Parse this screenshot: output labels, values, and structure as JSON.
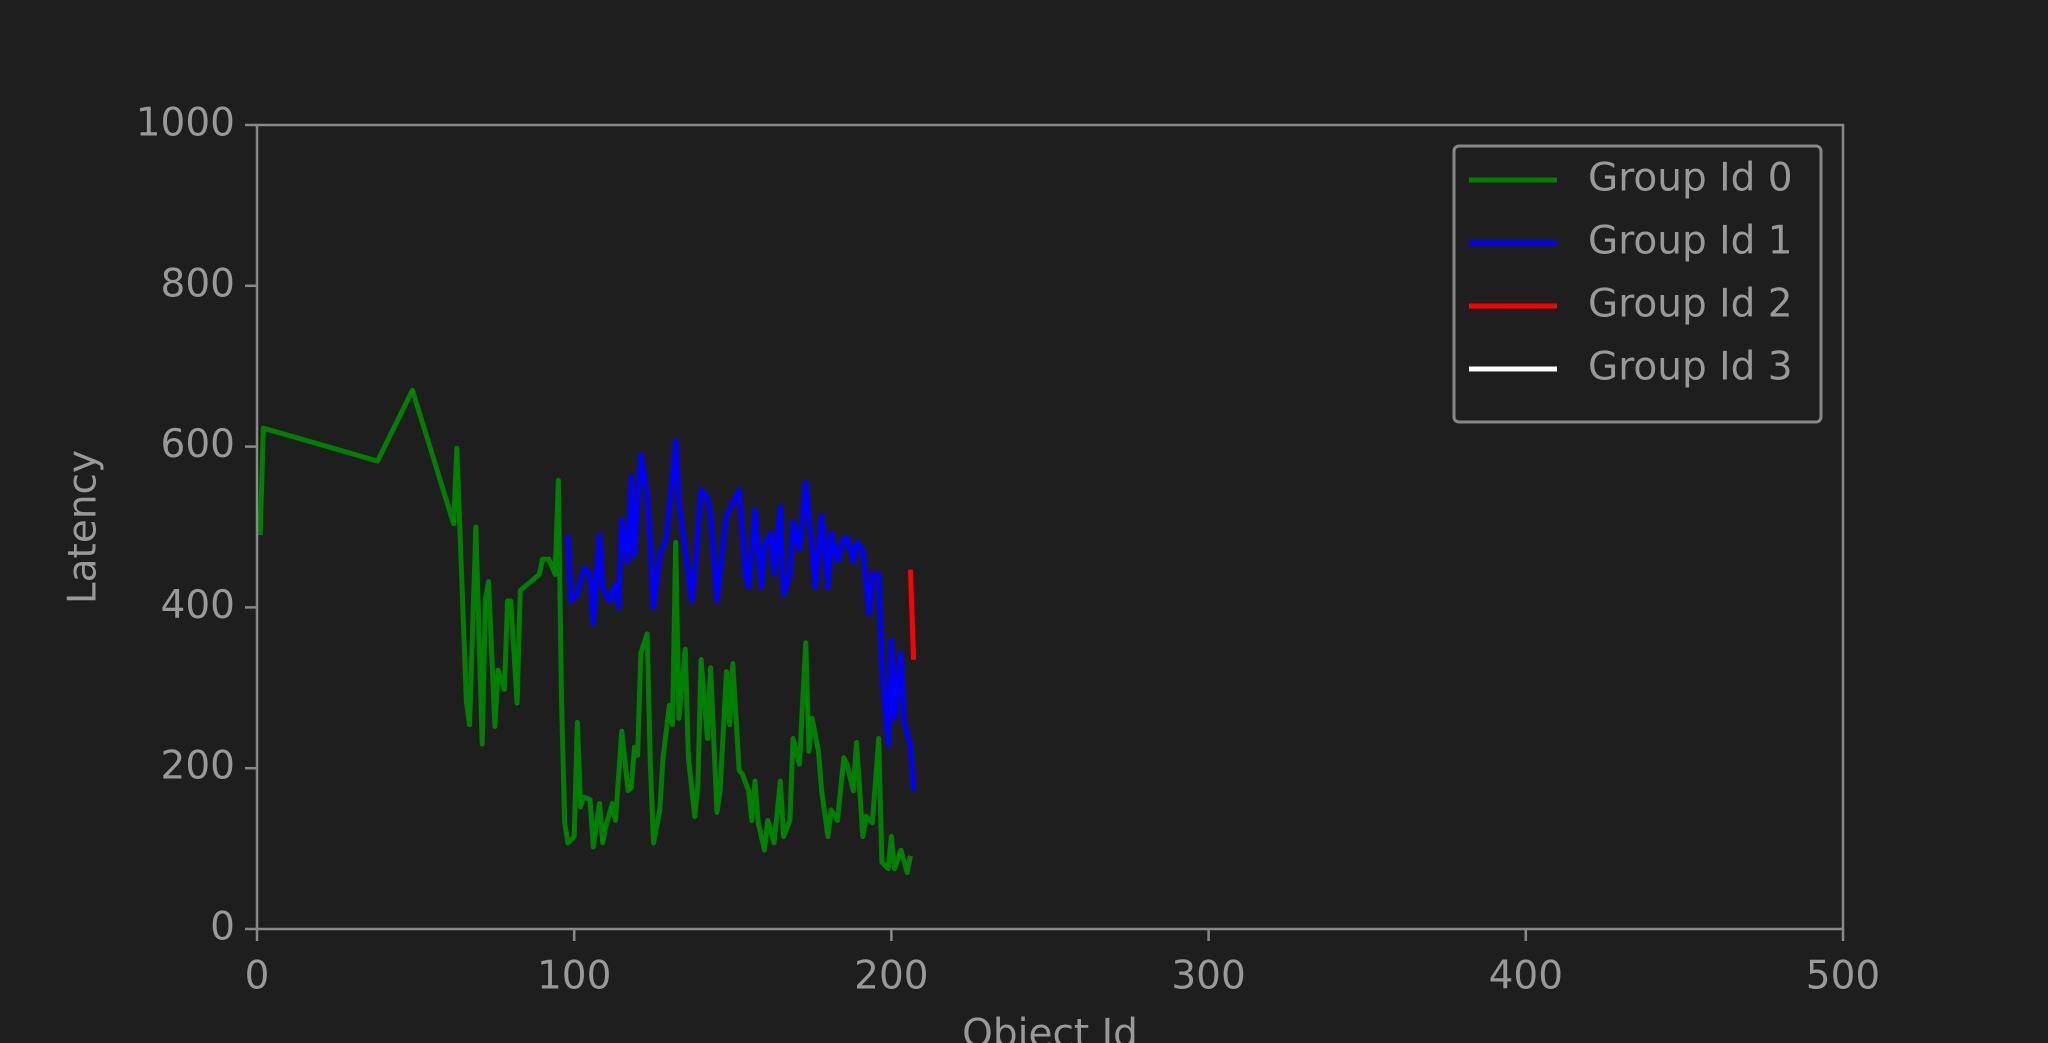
{
  "chart_data": {
    "type": "line",
    "xlabel": "Object Id",
    "ylabel": "Latency",
    "xlim": [
      0,
      500
    ],
    "xticks": [
      0,
      100,
      200,
      300,
      400,
      500
    ],
    "ylim": [
      0,
      1000
    ],
    "yticks": [
      0,
      200,
      400,
      600,
      800,
      1000
    ],
    "legend": "upper right",
    "series": [
      {
        "name": "Group Id 0",
        "color": "#008000",
        "x": [
          1,
          2,
          38,
          49,
          62,
          63,
          66,
          67,
          69,
          71,
          72,
          73,
          75,
          76,
          78,
          79,
          80,
          82,
          83,
          89,
          90,
          92,
          94,
          95,
          96,
          97,
          98,
          100,
          101,
          102,
          103,
          105,
          106,
          108,
          109,
          110,
          112,
          113,
          115,
          117,
          118,
          119,
          120,
          121,
          123,
          124,
          125,
          127,
          128,
          130,
          131,
          132,
          133,
          135,
          136,
          138,
          139,
          140,
          142,
          143,
          145,
          146,
          148,
          149,
          150,
          152,
          153,
          155,
          156,
          157,
          158,
          160,
          161,
          163,
          165,
          166,
          168,
          169,
          171,
          173,
          174,
          175,
          177,
          178,
          180,
          181,
          183,
          185,
          186,
          188,
          189,
          191,
          192,
          194,
          196,
          197,
          199,
          200,
          201,
          203,
          205,
          206
        ],
        "values": [
          490,
          623,
          582,
          670,
          504,
          598,
          283,
          254,
          500,
          230,
          408,
          432,
          252,
          322,
          298,
          408,
          408,
          281,
          421,
          441,
          460,
          460,
          441,
          558,
          286,
          132,
          107,
          115,
          257,
          152,
          164,
          161,
          102,
          156,
          107,
          128,
          156,
          135,
          246,
          172,
          176,
          226,
          216,
          343,
          367,
          205,
          107,
          148,
          213,
          278,
          254,
          481,
          262,
          348,
          213,
          140,
          180,
          335,
          237,
          325,
          145,
          172,
          320,
          254,
          330,
          197,
          193,
          172,
          135,
          184,
          132,
          98,
          135,
          107,
          184,
          115,
          135,
          237,
          205,
          356,
          221,
          262,
          221,
          172,
          115,
          148,
          135,
          213,
          205,
          172,
          232,
          115,
          140,
          132,
          237,
          83,
          75,
          115,
          75,
          98,
          70,
          91
        ]
      },
      {
        "name": "Group Id 1",
        "color": "#0000ff",
        "x": [
          98,
          99,
          101,
          103,
          105,
          106,
          108,
          109,
          111,
          113,
          114,
          115,
          117,
          118,
          119,
          121,
          123,
          124,
          125,
          127,
          129,
          130,
          132,
          133,
          135,
          137,
          138,
          140,
          142,
          143,
          145,
          147,
          148,
          150,
          152,
          154,
          155,
          157,
          159,
          160,
          162,
          163,
          165,
          166,
          168,
          169,
          171,
          173,
          175,
          176,
          178,
          180,
          181,
          183,
          185,
          186,
          188,
          189,
          191,
          193,
          194,
          196,
          197,
          199,
          200,
          201,
          203,
          204,
          206,
          207
        ],
        "values": [
          490,
          408,
          416,
          449,
          441,
          379,
          490,
          425,
          408,
          428,
          400,
          509,
          457,
          563,
          465,
          590,
          541,
          481,
          400,
          465,
          486,
          522,
          607,
          530,
          472,
          408,
          441,
          546,
          537,
          514,
          408,
          481,
          514,
          530,
          546,
          441,
          425,
          522,
          425,
          476,
          493,
          441,
          525,
          416,
          441,
          506,
          472,
          555,
          472,
          425,
          514,
          425,
          493,
          457,
          486,
          486,
          457,
          481,
          472,
          392,
          441,
          441,
          327,
          229,
          359,
          262,
          343,
          257,
          229,
          172
        ]
      },
      {
        "name": "Group Id 2",
        "color": "#ff0000",
        "x": [
          206,
          207
        ],
        "values": [
          447,
          335
        ]
      },
      {
        "name": "Group Id 3",
        "color": "#ffffff",
        "x": [],
        "values": []
      }
    ]
  }
}
